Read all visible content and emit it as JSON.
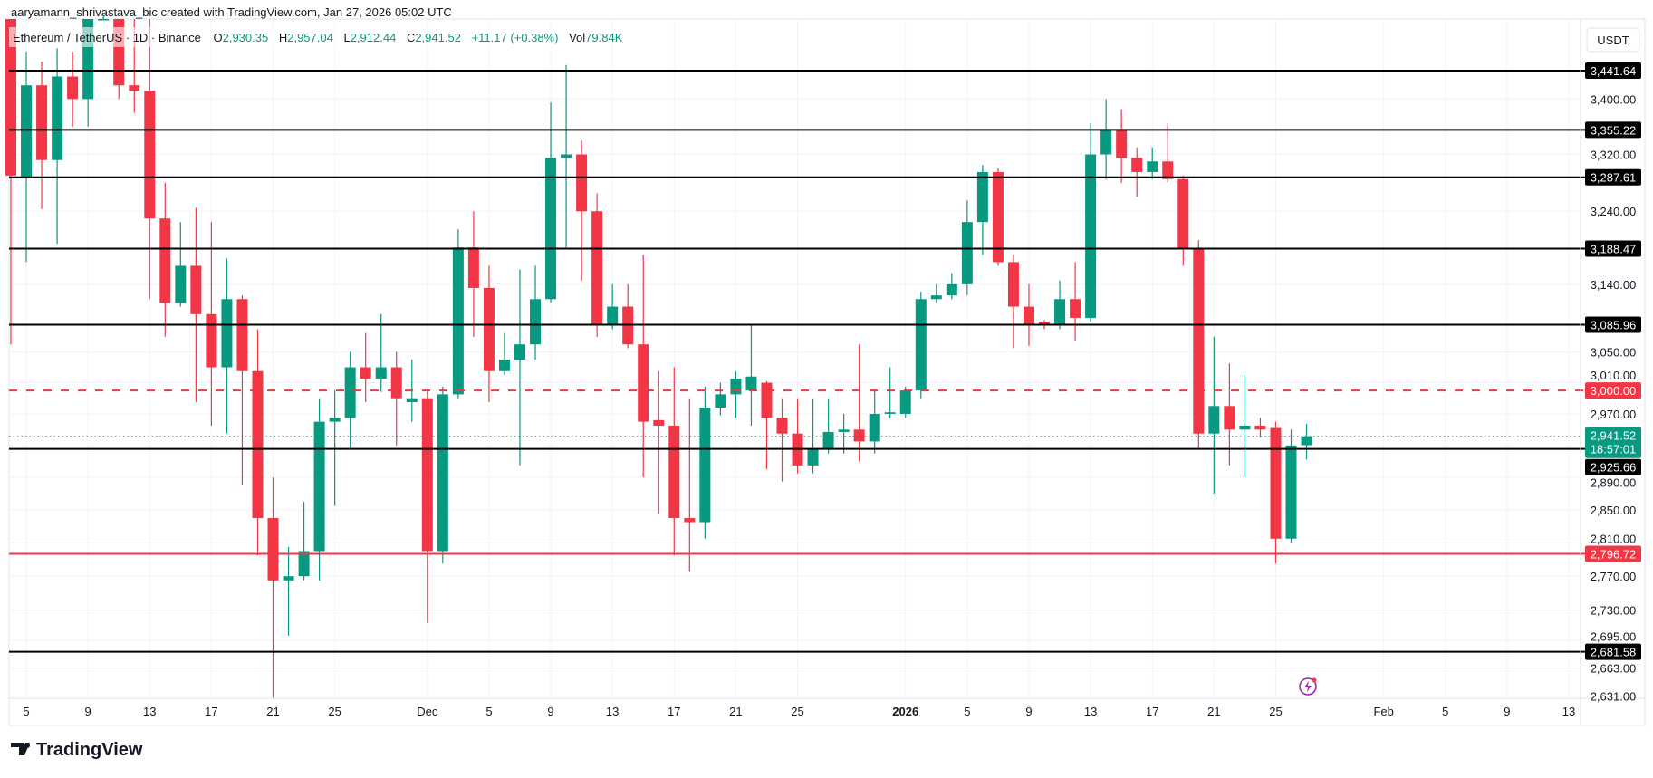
{
  "header": {
    "attribution": "aaryamann_shrivastava_bic created with TradingView.com, Jan 27, 2026 05:02 UTC",
    "symbol": "Ethereum / TetherUS · 1D · Binance",
    "open_label": "O",
    "open": "2,930.35",
    "high_label": "H",
    "high": "2,957.04",
    "low_label": "L",
    "low": "2,912.44",
    "close_label": "C",
    "close": "2,941.52",
    "change": "+11.17 (+0.38%)",
    "vol_label": "Vol",
    "vol": "79.84K"
  },
  "currency_button": "USDT",
  "countdown": "18:57:01",
  "logo_text": "TradingView",
  "colors": {
    "up": "#089981",
    "down": "#F23645",
    "level": "#000000",
    "grid": "#f0f3fa",
    "accent": "#9c27b0"
  },
  "chart_data": {
    "type": "candlestick",
    "symbol": "ETHUSDT",
    "interval": "1D",
    "y_scale": "log",
    "ylim": [
      2628.5,
      3518.8
    ],
    "xlim": [
      "2025-11-04",
      "2026-02-15"
    ],
    "grid": true,
    "y_ticks": [
      3400,
      3320,
      3240,
      3140,
      3050,
      3010,
      2970,
      2890,
      2850,
      2810,
      2770,
      2730,
      2695,
      2663,
      2631
    ],
    "x_ticks": [
      {
        "label": "5",
        "date": "2025-11-05"
      },
      {
        "label": "9",
        "date": "2025-11-09"
      },
      {
        "label": "13",
        "date": "2025-11-13"
      },
      {
        "label": "17",
        "date": "2025-11-17"
      },
      {
        "label": "21",
        "date": "2025-11-21"
      },
      {
        "label": "25",
        "date": "2025-11-25"
      },
      {
        "label": "Dec",
        "date": "2025-12-01"
      },
      {
        "label": "5",
        "date": "2025-12-05"
      },
      {
        "label": "9",
        "date": "2025-12-09"
      },
      {
        "label": "13",
        "date": "2025-12-13"
      },
      {
        "label": "17",
        "date": "2025-12-17"
      },
      {
        "label": "21",
        "date": "2025-12-21"
      },
      {
        "label": "25",
        "date": "2025-12-25"
      },
      {
        "label": "2026",
        "date": "2026-01-01",
        "bold": true
      },
      {
        "label": "5",
        "date": "2026-01-05"
      },
      {
        "label": "9",
        "date": "2026-01-09"
      },
      {
        "label": "13",
        "date": "2026-01-13"
      },
      {
        "label": "17",
        "date": "2026-01-17"
      },
      {
        "label": "21",
        "date": "2026-01-21"
      },
      {
        "label": "25",
        "date": "2026-01-25"
      },
      {
        "label": "Feb",
        "date": "2026-02-01"
      },
      {
        "label": "5",
        "date": "2026-02-05"
      },
      {
        "label": "9",
        "date": "2026-02-09"
      },
      {
        "label": "13",
        "date": "2026-02-13"
      }
    ],
    "levels": [
      {
        "price": 3441.64,
        "label": "3,441.64",
        "style": "solid",
        "color": "#000000"
      },
      {
        "price": 3355.22,
        "label": "3,355.22",
        "style": "solid",
        "color": "#000000"
      },
      {
        "price": 3287.61,
        "label": "3,287.61",
        "style": "solid",
        "color": "#000000"
      },
      {
        "price": 3188.47,
        "label": "3,188.47",
        "style": "solid",
        "color": "#000000"
      },
      {
        "price": 3085.96,
        "label": "3,085.96",
        "style": "solid",
        "color": "#000000"
      },
      {
        "price": 3000.0,
        "label": "3,000.00",
        "style": "dashed",
        "color": "#F23645"
      },
      {
        "price": 2925.66,
        "label": "2,925.66",
        "style": "solid",
        "color": "#000000"
      },
      {
        "price": 2796.72,
        "label": "2,796.72",
        "style": "solid",
        "color": "#F23645"
      },
      {
        "price": 2681.58,
        "label": "2,681.58",
        "style": "solid",
        "color": "#000000"
      }
    ],
    "last_price": {
      "price": 2941.52,
      "label": "2,941.52"
    },
    "columns": [
      "date",
      "open",
      "high",
      "low",
      "close"
    ],
    "candles": [
      [
        "2025-11-04",
        3580,
        3630,
        3060,
        3290
      ],
      [
        "2025-11-05",
        3287,
        3470,
        3170,
        3420
      ],
      [
        "2025-11-06",
        3420,
        3455,
        3243,
        3312
      ],
      [
        "2025-11-07",
        3312,
        3475,
        3195,
        3433
      ],
      [
        "2025-11-08",
        3433,
        3470,
        3360,
        3400
      ],
      [
        "2025-11-09",
        3400,
        3580,
        3360,
        3535
      ],
      [
        "2025-11-10",
        3535,
        3640,
        3525,
        3565
      ],
      [
        "2025-11-11",
        3545,
        3580,
        3400,
        3420
      ],
      [
        "2025-11-12",
        3420,
        3560,
        3380,
        3412
      ],
      [
        "2025-11-13",
        3412,
        3560,
        3120,
        3230
      ],
      [
        "2025-11-14",
        3230,
        3280,
        3070,
        3115
      ],
      [
        "2025-11-15",
        3115,
        3225,
        3110,
        3165
      ],
      [
        "2025-11-16",
        3165,
        3245,
        2985,
        3100
      ],
      [
        "2025-11-17",
        3100,
        3225,
        2955,
        3030
      ],
      [
        "2025-11-18",
        3030,
        3175,
        2945,
        3120
      ],
      [
        "2025-11-19",
        3120,
        3125,
        2880,
        3025
      ],
      [
        "2025-11-20",
        3025,
        3080,
        2795,
        2840
      ],
      [
        "2025-11-21",
        2840,
        2890,
        2625,
        2765
      ],
      [
        "2025-11-22",
        2765,
        2805,
        2700,
        2770
      ],
      [
        "2025-11-23",
        2770,
        2860,
        2765,
        2800
      ],
      [
        "2025-11-24",
        2800,
        2990,
        2765,
        2960
      ],
      [
        "2025-11-25",
        2960,
        3000,
        2855,
        2965
      ],
      [
        "2025-11-26",
        2965,
        3050,
        2925,
        3030
      ],
      [
        "2025-11-27",
        3030,
        3075,
        2985,
        3015
      ],
      [
        "2025-11-28",
        3015,
        3100,
        2998,
        3030
      ],
      [
        "2025-11-29",
        3030,
        3050,
        2930,
        2990
      ],
      [
        "2025-11-30",
        2985,
        3040,
        2960,
        2990
      ],
      [
        "2025-12-01",
        2990,
        3000,
        2715,
        2800
      ],
      [
        "2025-12-02",
        2800,
        3005,
        2785,
        2995
      ],
      [
        "2025-12-03",
        2995,
        3215,
        2990,
        3190
      ],
      [
        "2025-12-04",
        3190,
        3240,
        3070,
        3135
      ],
      [
        "2025-12-05",
        3135,
        3165,
        2985,
        3025
      ],
      [
        "2025-12-06",
        3025,
        3075,
        3020,
        3040
      ],
      [
        "2025-12-07",
        3040,
        3160,
        2905,
        3060
      ],
      [
        "2025-12-08",
        3060,
        3165,
        3040,
        3120
      ],
      [
        "2025-12-09",
        3120,
        3395,
        3115,
        3315
      ],
      [
        "2025-12-10",
        3315,
        3450,
        3190,
        3320
      ],
      [
        "2025-12-11",
        3320,
        3340,
        3145,
        3240
      ],
      [
        "2025-12-12",
        3240,
        3265,
        3070,
        3085
      ],
      [
        "2025-12-13",
        3085,
        3140,
        3080,
        3110
      ],
      [
        "2025-12-14",
        3110,
        3140,
        3055,
        3060
      ],
      [
        "2025-12-15",
        3060,
        3180,
        2890,
        2960
      ],
      [
        "2025-12-16",
        2962,
        3025,
        2845,
        2955
      ],
      [
        "2025-12-17",
        2955,
        3030,
        2795,
        2840
      ],
      [
        "2025-12-18",
        2840,
        2990,
        2775,
        2835
      ],
      [
        "2025-12-19",
        2835,
        3005,
        2815,
        2978
      ],
      [
        "2025-12-20",
        2978,
        3010,
        2968,
        2995
      ],
      [
        "2025-12-21",
        2995,
        3025,
        2965,
        3015
      ],
      [
        "2025-12-22",
        3000,
        3085,
        2955,
        3018
      ],
      [
        "2025-12-23",
        3010,
        3012,
        2900,
        2965
      ],
      [
        "2025-12-24",
        2965,
        2990,
        2885,
        2945
      ],
      [
        "2025-12-25",
        2945,
        2990,
        2895,
        2905
      ],
      [
        "2025-12-26",
        2905,
        2990,
        2895,
        2925
      ],
      [
        "2025-12-27",
        2925,
        2990,
        2920,
        2947
      ],
      [
        "2025-12-28",
        2947,
        2970,
        2920,
        2950
      ],
      [
        "2025-12-29",
        2950,
        3060,
        2910,
        2935
      ],
      [
        "2025-12-30",
        2935,
        3000,
        2920,
        2970
      ],
      [
        "2025-12-31",
        2970,
        3030,
        2965,
        2972
      ],
      [
        "2026-01-01",
        2970,
        3005,
        2965,
        3000
      ],
      [
        "2026-01-02",
        3000,
        3130,
        2990,
        3120
      ],
      [
        "2026-01-03",
        3120,
        3140,
        3115,
        3125
      ],
      [
        "2026-01-04",
        3125,
        3155,
        3120,
        3140
      ],
      [
        "2026-01-05",
        3140,
        3255,
        3125,
        3225
      ],
      [
        "2026-01-06",
        3225,
        3305,
        3180,
        3295
      ],
      [
        "2026-01-07",
        3295,
        3300,
        3165,
        3170
      ],
      [
        "2026-01-08",
        3170,
        3180,
        3055,
        3110
      ],
      [
        "2026-01-09",
        3110,
        3140,
        3058,
        3086
      ],
      [
        "2026-01-10",
        3090,
        3092,
        3080,
        3085
      ],
      [
        "2026-01-11",
        3085,
        3145,
        3080,
        3120
      ],
      [
        "2026-01-12",
        3120,
        3170,
        3065,
        3095
      ],
      [
        "2026-01-13",
        3095,
        3365,
        3090,
        3320
      ],
      [
        "2026-01-14",
        3320,
        3400,
        3285,
        3355
      ],
      [
        "2026-01-15",
        3355,
        3385,
        3280,
        3315
      ],
      [
        "2026-01-16",
        3315,
        3330,
        3260,
        3295
      ],
      [
        "2026-01-17",
        3295,
        3330,
        3285,
        3310
      ],
      [
        "2026-01-18",
        3310,
        3365,
        3280,
        3285
      ],
      [
        "2026-01-19",
        3285,
        3290,
        3165,
        3188
      ],
      [
        "2026-01-20",
        3188,
        3200,
        2925,
        2945
      ],
      [
        "2026-01-21",
        2945,
        3070,
        2870,
        2980
      ],
      [
        "2026-01-22",
        2980,
        3035,
        2905,
        2950
      ],
      [
        "2026-01-23",
        2950,
        3020,
        2890,
        2955
      ],
      [
        "2026-01-24",
        2955,
        2965,
        2940,
        2950
      ],
      [
        "2026-01-25",
        2952,
        2960,
        2785,
        2815
      ],
      [
        "2026-01-26",
        2815,
        2950,
        2810,
        2930
      ],
      [
        "2026-01-27",
        2930.35,
        2957.04,
        2912.44,
        2941.52
      ]
    ]
  }
}
